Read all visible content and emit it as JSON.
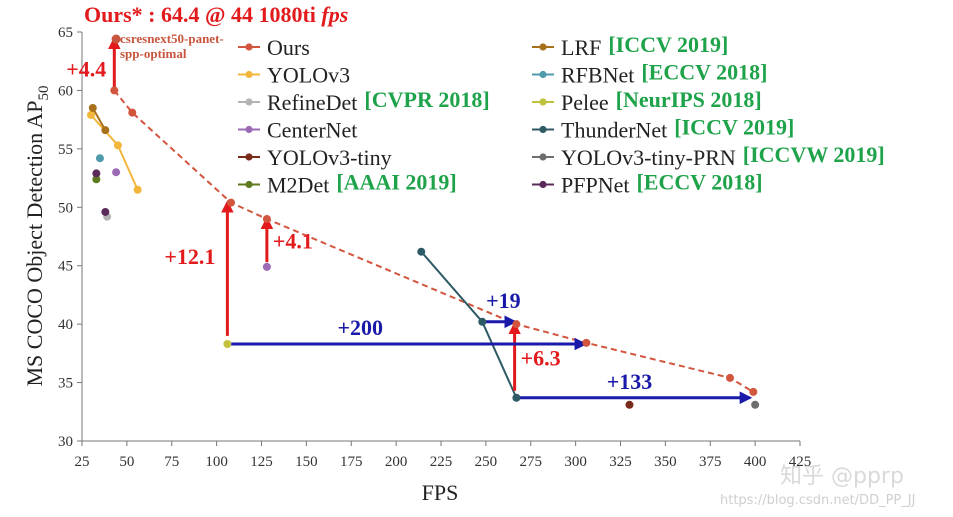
{
  "chart_data": {
    "type": "scatter",
    "title": "Ours* : 64.4 @ 44 1080ti fps",
    "title_parts": {
      "main": "Ours* : 64.4 @ 44 1080ti ",
      "italic": "fps"
    },
    "xlabel": "FPS",
    "ylabel": "MS COCO Object Detection AP",
    "ylabel_sub": "50",
    "xlim": [
      25,
      425
    ],
    "ylim": [
      30,
      65
    ],
    "xticks": [
      25,
      50,
      75,
      100,
      125,
      150,
      175,
      200,
      225,
      250,
      275,
      300,
      325,
      350,
      375,
      400,
      425
    ],
    "yticks": [
      30,
      35,
      40,
      45,
      50,
      55,
      60,
      65
    ],
    "ours_star": {
      "label": "csresnext50-panet-spp-optimal",
      "label_lines": [
        "csresnext50-panet-",
        "spp-optimal"
      ],
      "x": 44,
      "y": 64.4,
      "color": "#c8553d"
    },
    "series": [
      {
        "name": "Ours",
        "venue": "",
        "color": "#d2553d",
        "connector": "dashed",
        "x": [
          43,
          53,
          108,
          128,
          267,
          306,
          386,
          399
        ],
        "y": [
          60,
          58.1,
          50.4,
          49,
          40,
          38.4,
          35.4,
          34.2
        ]
      },
      {
        "name": "YOLOv3",
        "venue": "",
        "color": "#f2b73a",
        "connector": "solid",
        "x": [
          30,
          45,
          56
        ],
        "y": [
          57.9,
          55.3,
          51.5
        ]
      },
      {
        "name": "RefineDet",
        "venue": "[CVPR 2018]",
        "color": "#b3b3b3",
        "connector": "none",
        "x": [
          39
        ],
        "y": [
          49.2
        ]
      },
      {
        "name": "CenterNet",
        "venue": "",
        "color": "#9b6bb5",
        "connector": "none",
        "x": [
          44,
          128
        ],
        "y": [
          53,
          44.9
        ]
      },
      {
        "name": "YOLOv3-tiny",
        "venue": "",
        "color": "#7a2a1a",
        "connector": "none",
        "x": [
          330
        ],
        "y": [
          33.1
        ]
      },
      {
        "name": "M2Det",
        "venue": "[AAAI 2019]",
        "color": "#5e7a1e",
        "connector": "none",
        "x": [
          33
        ],
        "y": [
          52.4
        ]
      },
      {
        "name": "LRF",
        "venue": "[ICCV 2019]",
        "color": "#a7711b",
        "connector": "solid",
        "x": [
          31,
          38
        ],
        "y": [
          58.5,
          56.6
        ]
      },
      {
        "name": "RFBNet",
        "venue": "[ECCV 2018]",
        "color": "#4f9aab",
        "connector": "none",
        "x": [
          35
        ],
        "y": [
          54.2
        ]
      },
      {
        "name": "Pelee",
        "venue": "[NeurIPS 2018]",
        "color": "#c0c23d",
        "connector": "none",
        "x": [
          106
        ],
        "y": [
          38.3
        ]
      },
      {
        "name": "ThunderNet",
        "venue": "[ICCV 2019]",
        "color": "#2e5a66",
        "connector": "solid",
        "x": [
          214,
          248,
          267
        ],
        "y": [
          46.2,
          40.2,
          33.7
        ]
      },
      {
        "name": "YOLOv3-tiny-PRN",
        "venue": "[ICCVW 2019]",
        "color": "#6e6e6e",
        "connector": "none",
        "x": [
          400
        ],
        "y": [
          33.1
        ]
      },
      {
        "name": "PFPNet",
        "venue": "[ECCV 2018]",
        "color": "#5c2a5a",
        "connector": "none",
        "x": [
          33,
          38
        ],
        "y": [
          52.9,
          49.6
        ]
      }
    ],
    "annotations": [
      {
        "text": "+4.4",
        "color": "#e31a1c",
        "kind": "vertical-arrow",
        "x": 43,
        "y_from": 60,
        "y_to": 64.4
      },
      {
        "text": "+12.1",
        "color": "#e31a1c",
        "kind": "vertical-arrow",
        "x": 106,
        "y_from": 39,
        "y_to": 50.4
      },
      {
        "text": "+4.1",
        "color": "#e31a1c",
        "kind": "vertical-arrow",
        "x": 128,
        "y_from": 45.3,
        "y_to": 49
      },
      {
        "text": "+6.3",
        "color": "#e31a1c",
        "kind": "vertical-arrow",
        "x": 266,
        "y_from": 34.3,
        "y_to": 40
      },
      {
        "text": "+200",
        "color": "#1a1aaa",
        "kind": "horizontal-arrow",
        "y": 38.3,
        "x_from": 108,
        "x_to": 305
      },
      {
        "text": "+19",
        "color": "#1a1aaa",
        "kind": "horizontal-arrow",
        "y": 40.2,
        "x_from": 249,
        "x_to": 266
      },
      {
        "text": "+133",
        "color": "#1a1aaa",
        "kind": "horizontal-arrow",
        "y": 33.7,
        "x_from": 268,
        "x_to": 397
      }
    ],
    "legend_placement": "top-right"
  },
  "watermark": {
    "text_main": "知乎 @pprp",
    "text_sub": "https://blog.csdn.net/DD_PP_JJ"
  }
}
